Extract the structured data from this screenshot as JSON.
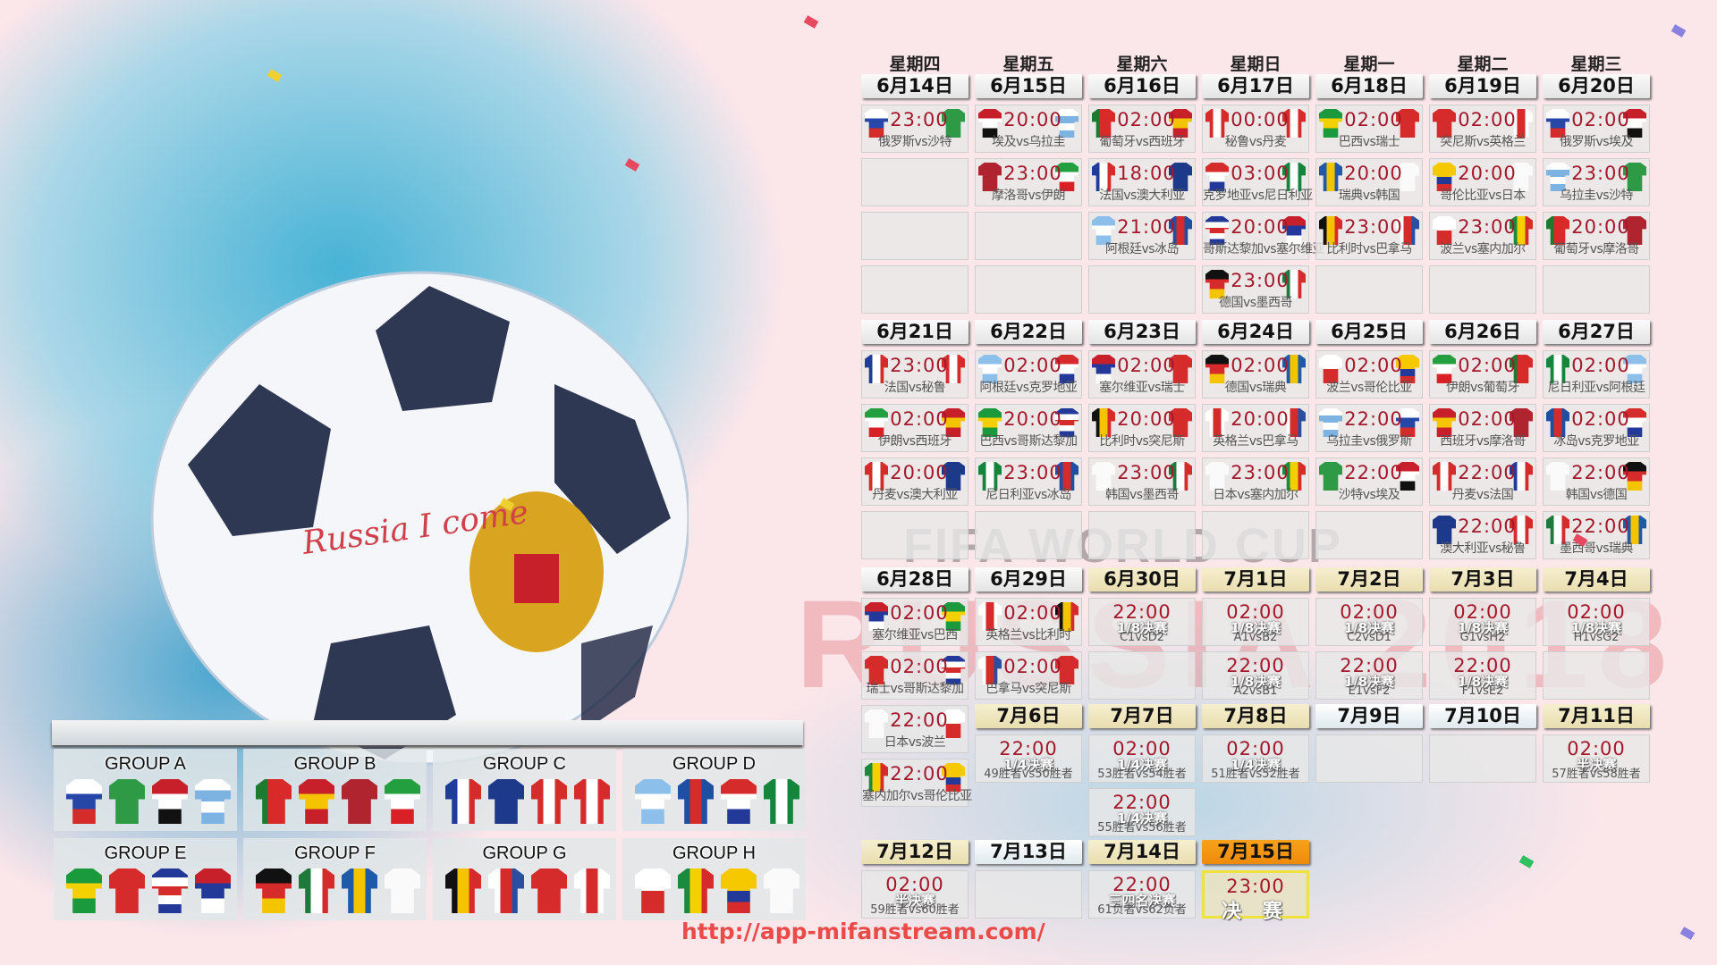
{
  "artwork": {
    "ball_text": "Russia I come",
    "watermark_top": "FIFA WORLD CUP",
    "watermark_bottom": "RUSSIA 2018"
  },
  "weekdays": [
    "星期四",
    "星期五",
    "星期六",
    "星期日",
    "星期一",
    "星期二",
    "星期三"
  ],
  "colors": {
    "time": "#a3182a",
    "final_header": "#f7a21a",
    "knockout_header": "#f0e7c2",
    "url": "#ea4a48"
  },
  "team_colors": {
    "俄罗斯": [
      "h",
      "#fff",
      "#2646a8",
      "#d52b2b"
    ],
    "沙特": [
      "h",
      "#2e9a45"
    ],
    "埃及": [
      "h",
      "#c8202b",
      "#fff",
      "#111"
    ],
    "乌拉圭": [
      "h",
      "#fff",
      "#7db3e3",
      "#fff",
      "#7db3e3"
    ],
    "摩洛哥": [
      "h",
      "#b02430"
    ],
    "伊朗": [
      "h",
      "#239f40",
      "#fff",
      "#da2027"
    ],
    "葡萄牙": [
      "v",
      "#1e7a2f",
      "#d92a2a",
      "#d92a2a"
    ],
    "西班牙": [
      "h",
      "#c8202b",
      "#f5c400",
      "#c8202b"
    ],
    "法国": [
      "v",
      "#1f3c9a",
      "#fff",
      "#d52b2b"
    ],
    "澳大利亚": [
      "h",
      "#1d3a8a"
    ],
    "阿根廷": [
      "h",
      "#8cc0ea",
      "#fff",
      "#8cc0ea"
    ],
    "冰岛": [
      "v",
      "#1e4fa3",
      "#d52b2b",
      "#1e4fa3"
    ],
    "秘鲁": [
      "v",
      "#d52b2b",
      "#fff",
      "#d52b2b"
    ],
    "丹麦": [
      "v",
      "#d52b2b",
      "#fff",
      "#d52b2b"
    ],
    "克罗地亚": [
      "h",
      "#d52b2b",
      "#fff",
      "#23399a"
    ],
    "尼日利亚": [
      "v",
      "#14853b",
      "#fff",
      "#14853b"
    ],
    "哥斯达黎加": [
      "h",
      "#23399a",
      "#fff",
      "#d52b2b",
      "#fff",
      "#23399a"
    ],
    "塞尔维亚": [
      "h",
      "#c8202b",
      "#23399a",
      "#fff"
    ],
    "德国": [
      "h",
      "#111",
      "#d52b2b",
      "#f5c400"
    ],
    "墨西哥": [
      "v",
      "#1e7a3c",
      "#fff",
      "#d52b2b"
    ],
    "巴西": [
      "h",
      "#1a9a3c",
      "#f5d000",
      "#1a9a3c"
    ],
    "瑞士": [
      "h",
      "#d52b2b"
    ],
    "瑞典": [
      "v",
      "#1e5aa8",
      "#f5c400",
      "#1e5aa8"
    ],
    "韩国": [
      "h",
      "#fafafa"
    ],
    "比利时": [
      "v",
      "#111",
      "#f5c400",
      "#d52b2b"
    ],
    "巴拿马": [
      "v",
      "#fff",
      "#d52b2b",
      "#2a4fa0"
    ],
    "突尼斯": [
      "h",
      "#d52b2b"
    ],
    "英格兰": [
      "v",
      "#fff",
      "#d52b2b",
      "#fff"
    ],
    "哥伦比亚": [
      "h",
      "#f5c800",
      "#f5c800",
      "#23399a",
      "#d52b2b"
    ],
    "日本": [
      "h",
      "#fafafa"
    ],
    "波兰": [
      "h",
      "#fff",
      "#d52b2b"
    ],
    "塞内加尔": [
      "v",
      "#1a8a3c",
      "#f5d000",
      "#d52b2b"
    ]
  },
  "days": [
    {
      "date": "6月14日",
      "style": "group",
      "matches": [
        {
          "time": "23:00",
          "home": "俄罗斯",
          "away": "沙特",
          "label": "俄罗斯vs沙特"
        }
      ]
    },
    {
      "date": "6月15日",
      "style": "group",
      "matches": [
        {
          "time": "20:00",
          "home": "埃及",
          "away": "乌拉圭",
          "label": "埃及vs乌拉圭"
        },
        {
          "time": "23:00",
          "home": "摩洛哥",
          "away": "伊朗",
          "label": "摩洛哥vs伊朗"
        }
      ]
    },
    {
      "date": "6月16日",
      "style": "group",
      "matches": [
        {
          "time": "02:00",
          "home": "葡萄牙",
          "away": "西班牙",
          "label": "葡萄牙vs西班牙"
        },
        {
          "time": "18:00",
          "home": "法国",
          "away": "澳大利亚",
          "label": "法国vs澳大利亚"
        },
        {
          "time": "21:00",
          "home": "阿根廷",
          "away": "冰岛",
          "label": "阿根廷vs冰岛"
        }
      ]
    },
    {
      "date": "6月17日",
      "style": "group",
      "matches": [
        {
          "time": "00:00",
          "home": "秘鲁",
          "away": "丹麦",
          "label": "秘鲁vs丹麦"
        },
        {
          "time": "03:00",
          "home": "克罗地亚",
          "away": "尼日利亚",
          "label": "克罗地亚vs尼日利亚"
        },
        {
          "time": "20:00",
          "home": "哥斯达黎加",
          "away": "塞尔维亚",
          "label": "哥斯达黎加vs塞尔维亚"
        },
        {
          "time": "23:00",
          "home": "德国",
          "away": "墨西哥",
          "label": "德国vs墨西哥"
        }
      ]
    },
    {
      "date": "6月18日",
      "style": "group",
      "matches": [
        {
          "time": "02:00",
          "home": "巴西",
          "away": "瑞士",
          "label": "巴西vs瑞士"
        },
        {
          "time": "20:00",
          "home": "瑞典",
          "away": "韩国",
          "label": "瑞典vs韩国"
        },
        {
          "time": "23:00",
          "home": "比利时",
          "away": "巴拿马",
          "label": "比利时vs巴拿马"
        }
      ]
    },
    {
      "date": "6月19日",
      "style": "group",
      "matches": [
        {
          "time": "02:00",
          "home": "突尼斯",
          "away": "英格兰",
          "label": "突尼斯vs英格兰"
        },
        {
          "time": "20:00",
          "home": "哥伦比亚",
          "away": "日本",
          "label": "哥伦比亚vs日本"
        },
        {
          "time": "23:00",
          "home": "波兰",
          "away": "塞内加尔",
          "label": "波兰vs塞内加尔"
        }
      ]
    },
    {
      "date": "6月20日",
      "style": "group",
      "matches": [
        {
          "time": "02:00",
          "home": "俄罗斯",
          "away": "埃及",
          "label": "俄罗斯vs埃及"
        },
        {
          "time": "23:00",
          "home": "乌拉圭",
          "away": "沙特",
          "label": "乌拉圭vs沙特"
        },
        {
          "time": "20:00",
          "home": "葡萄牙",
          "away": "摩洛哥",
          "label": "葡萄牙vs摩洛哥"
        }
      ]
    },
    {
      "date": "6月21日",
      "style": "group",
      "matches": [
        {
          "time": "23:00",
          "home": "法国",
          "away": "秘鲁",
          "label": "法国vs秘鲁"
        },
        {
          "time": "02:00",
          "home": "伊朗",
          "away": "西班牙",
          "label": "伊朗vs西班牙"
        },
        {
          "time": "20:00",
          "home": "丹麦",
          "away": "澳大利亚",
          "label": "丹麦vs澳大利亚"
        }
      ]
    },
    {
      "date": "6月22日",
      "style": "group",
      "matches": [
        {
          "time": "02:00",
          "home": "阿根廷",
          "away": "克罗地亚",
          "label": "阿根廷vs克罗地亚"
        },
        {
          "time": "20:00",
          "home": "巴西",
          "away": "哥斯达黎加",
          "label": "巴西vs哥斯达黎加"
        },
        {
          "time": "23:00",
          "home": "尼日利亚",
          "away": "冰岛",
          "label": "尼日利亚vs冰岛"
        }
      ]
    },
    {
      "date": "6月23日",
      "style": "group",
      "matches": [
        {
          "time": "02:00",
          "home": "塞尔维亚",
          "away": "瑞士",
          "label": "塞尔维亚vs瑞士"
        },
        {
          "time": "20:00",
          "home": "比利时",
          "away": "突尼斯",
          "label": "比利时vs突尼斯"
        },
        {
          "time": "23:00",
          "home": "韩国",
          "away": "墨西哥",
          "label": "韩国vs墨西哥"
        }
      ]
    },
    {
      "date": "6月24日",
      "style": "group",
      "matches": [
        {
          "time": "02:00",
          "home": "德国",
          "away": "瑞典",
          "label": "德国vs瑞典"
        },
        {
          "time": "20:00",
          "home": "英格兰",
          "away": "巴拿马",
          "label": "英格兰vs巴拿马"
        },
        {
          "time": "23:00",
          "home": "日本",
          "away": "塞内加尔",
          "label": "日本vs塞内加尔"
        }
      ]
    },
    {
      "date": "6月25日",
      "style": "group",
      "matches": [
        {
          "time": "02:00",
          "home": "波兰",
          "away": "哥伦比亚",
          "label": "波兰vs哥伦比亚"
        },
        {
          "time": "22:00",
          "home": "乌拉圭",
          "away": "俄罗斯",
          "label": "乌拉圭vs俄罗斯"
        },
        {
          "time": "22:00",
          "home": "沙特",
          "away": "埃及",
          "label": "沙特vs埃及"
        }
      ]
    },
    {
      "date": "6月26日",
      "style": "group",
      "matches": [
        {
          "time": "02:00",
          "home": "伊朗",
          "away": "葡萄牙",
          "label": "伊朗vs葡萄牙"
        },
        {
          "time": "02:00",
          "home": "西班牙",
          "away": "摩洛哥",
          "label": "西班牙vs摩洛哥"
        },
        {
          "time": "22:00",
          "home": "丹麦",
          "away": "法国",
          "label": "丹麦vs法国"
        },
        {
          "time": "22:00",
          "home": "澳大利亚",
          "away": "秘鲁",
          "label": "澳大利亚vs秘鲁"
        }
      ]
    },
    {
      "date": "6月27日",
      "style": "group",
      "matches": [
        {
          "time": "02:00",
          "home": "尼日利亚",
          "away": "阿根廷",
          "label": "尼日利亚vs阿根廷"
        },
        {
          "time": "02:00",
          "home": "冰岛",
          "away": "克罗地亚",
          "label": "冰岛vs克罗地亚"
        },
        {
          "time": "22:00",
          "home": "韩国",
          "away": "德国",
          "label": "韩国vs德国"
        },
        {
          "time": "22:00",
          "home": "墨西哥",
          "away": "瑞典",
          "label": "墨西哥vs瑞典"
        }
      ]
    },
    {
      "date": "6月28日",
      "style": "group",
      "matches": [
        {
          "time": "02:00",
          "home": "塞尔维亚",
          "away": "巴西",
          "label": "塞尔维亚vs巴西"
        },
        {
          "time": "02:00",
          "home": "瑞士",
          "away": "哥斯达黎加",
          "label": "瑞士vs哥斯达黎加"
        },
        {
          "time": "22:00",
          "home": "日本",
          "away": "波兰",
          "label": "日本vs波兰"
        },
        {
          "time": "22:00",
          "home": "塞内加尔",
          "away": "哥伦比亚",
          "label": "塞内加尔vs哥伦比亚"
        }
      ]
    },
    {
      "date": "6月29日",
      "style": "group",
      "matches": [
        {
          "time": "02:00",
          "home": "英格兰",
          "away": "比利时",
          "label": "英格兰vs比利时"
        },
        {
          "time": "02:00",
          "home": "巴拿马",
          "away": "突尼斯",
          "label": "巴拿马vs突尼斯"
        }
      ]
    },
    {
      "date": "6月30日",
      "style": "knockout",
      "matches": [
        {
          "time": "22:00",
          "stage": "1/8决赛",
          "pair": "C1vsD2"
        }
      ]
    },
    {
      "date": "7月1日",
      "style": "knockout",
      "matches": [
        {
          "time": "02:00",
          "stage": "1/8决赛",
          "pair": "A1vsB2"
        },
        {
          "time": "22:00",
          "stage": "1/8决赛",
          "pair": "A2vsB1"
        }
      ]
    },
    {
      "date": "7月2日",
      "style": "knockout",
      "matches": [
        {
          "time": "02:00",
          "stage": "1/8决赛",
          "pair": "C2vsD1"
        },
        {
          "time": "22:00",
          "stage": "1/8决赛",
          "pair": "E1vsF2"
        }
      ]
    },
    {
      "date": "7月3日",
      "style": "knockout",
      "matches": [
        {
          "time": "02:00",
          "stage": "1/8决赛",
          "pair": "G1vsH2"
        },
        {
          "time": "22:00",
          "stage": "1/8决赛",
          "pair": "F1vsE2"
        }
      ]
    },
    {
      "date": "7月4日",
      "style": "knockout",
      "matches": [
        {
          "time": "02:00",
          "stage": "1/8决赛",
          "pair": "H1vsG2"
        }
      ]
    },
    {
      "date": "7月6日",
      "style": "knockout",
      "matches": [
        {
          "time": "22:00",
          "stage": "1/4决赛",
          "pair": "49胜者vs50胜者"
        }
      ]
    },
    {
      "date": "7月7日",
      "style": "knockout",
      "matches": [
        {
          "time": "02:00",
          "stage": "1/4决赛",
          "pair": "53胜者vs54胜者"
        },
        {
          "time": "22:00",
          "stage": "1/4决赛",
          "pair": "55胜者vs56胜者"
        }
      ]
    },
    {
      "date": "7月8日",
      "style": "knockout",
      "matches": [
        {
          "time": "02:00",
          "stage": "1/4决赛",
          "pair": "51胜者vs52胜者"
        }
      ]
    },
    {
      "date": "7月9日",
      "style": "rest",
      "matches": []
    },
    {
      "date": "7月10日",
      "style": "rest",
      "matches": []
    },
    {
      "date": "7月11日",
      "style": "knockout",
      "matches": [
        {
          "time": "02:00",
          "stage": "半决赛",
          "pair": "57胜者vs58胜者"
        }
      ]
    },
    {
      "date": "7月12日",
      "style": "knockout",
      "matches": [
        {
          "time": "02:00",
          "stage": "半决赛",
          "pair": "59胜者vs60胜者"
        }
      ]
    },
    {
      "date": "7月13日",
      "style": "rest",
      "matches": []
    },
    {
      "date": "7月14日",
      "style": "knockout",
      "matches": [
        {
          "time": "22:00",
          "stage": "三四名决赛",
          "pair": "61负者vs62负者"
        }
      ]
    },
    {
      "date": "7月15日",
      "style": "final",
      "matches": [
        {
          "time": "23:00",
          "stage": "决 赛",
          "pair": ""
        }
      ]
    }
  ],
  "groups": [
    {
      "name": "GROUP A",
      "teams": [
        "俄罗斯",
        "沙特",
        "埃及",
        "乌拉圭"
      ]
    },
    {
      "name": "GROUP B",
      "teams": [
        "葡萄牙",
        "西班牙",
        "摩洛哥",
        "伊朗"
      ]
    },
    {
      "name": "GROUP C",
      "teams": [
        "法国",
        "澳大利亚",
        "秘鲁",
        "丹麦"
      ]
    },
    {
      "name": "GROUP D",
      "teams": [
        "阿根廷",
        "冰岛",
        "克罗地亚",
        "尼日利亚"
      ]
    },
    {
      "name": "GROUP E",
      "teams": [
        "巴西",
        "瑞士",
        "哥斯达黎加",
        "塞尔维亚"
      ]
    },
    {
      "name": "GROUP F",
      "teams": [
        "德国",
        "墨西哥",
        "瑞典",
        "韩国"
      ]
    },
    {
      "name": "GROUP G",
      "teams": [
        "比利时",
        "巴拿马",
        "突尼斯",
        "英格兰"
      ]
    },
    {
      "name": "GROUP H",
      "teams": [
        "波兰",
        "塞内加尔",
        "哥伦比亚",
        "日本"
      ]
    }
  ],
  "footer": {
    "url": "http://app-mifanstream.com/"
  }
}
